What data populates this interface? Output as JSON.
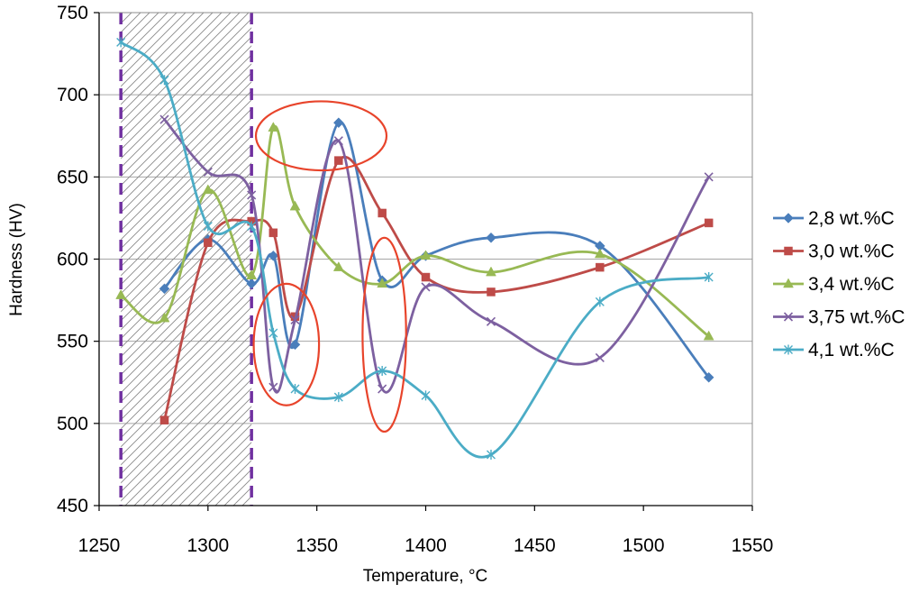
{
  "chart_data": {
    "type": "line",
    "xlabel": "Temperature, °C",
    "ylabel": "Hardness (HV)",
    "xlim": [
      1250,
      1550
    ],
    "ylim": [
      450,
      750
    ],
    "xticks": [
      1250,
      1300,
      1350,
      1400,
      1450,
      1500,
      1550
    ],
    "yticks": [
      450,
      500,
      550,
      600,
      650,
      700,
      750
    ],
    "grid": "horizontal",
    "legend_position": "right",
    "shaded_region": {
      "x_from": 1260,
      "x_to": 1320,
      "pattern": "diagonal hatch",
      "boundary_color": "#7030A0"
    },
    "highlight_ellipses": [
      {
        "cx": 1352,
        "cy": 675,
        "rx": 30,
        "ry": 21
      },
      {
        "cx": 1336,
        "cy": 548,
        "rx": 15,
        "ry": 37
      },
      {
        "cx": 1381,
        "cy": 554,
        "rx": 10,
        "ry": 59
      }
    ],
    "series": [
      {
        "name": "2,8 wt.%C",
        "color": "#4A7EBB",
        "marker": "diamond",
        "x": [
          1280,
          1300,
          1320,
          1330,
          1340,
          1360,
          1380,
          1400,
          1430,
          1480,
          1530
        ],
        "y": [
          582,
          612,
          585,
          602,
          548,
          683,
          587,
          602,
          613,
          608,
          528
        ]
      },
      {
        "name": "3,0 wt.%C",
        "color": "#BE4B48",
        "marker": "square",
        "x": [
          1280,
          1300,
          1320,
          1330,
          1340,
          1360,
          1380,
          1400,
          1430,
          1480,
          1530
        ],
        "y": [
          502,
          610,
          623,
          616,
          565,
          660,
          628,
          589,
          580,
          595,
          622
        ]
      },
      {
        "name": "3,4  wt.%C",
        "color": "#98B954",
        "marker": "triangle",
        "x": [
          1260,
          1280,
          1300,
          1320,
          1330,
          1340,
          1360,
          1380,
          1400,
          1430,
          1480,
          1530
        ],
        "y": [
          578,
          564,
          642,
          590,
          680,
          632,
          595,
          585,
          602,
          592,
          603,
          553
        ]
      },
      {
        "name": "3,75 wt.%C",
        "color": "#7D60A0",
        "marker": "x",
        "x": [
          1280,
          1300,
          1320,
          1330,
          1340,
          1360,
          1380,
          1400,
          1430,
          1480,
          1530
        ],
        "y": [
          685,
          653,
          639,
          522,
          563,
          672,
          521,
          583,
          562,
          540,
          650
        ]
      },
      {
        "name": "4,1  wt.%C",
        "color": "#4BACC6",
        "marker": "asterisk",
        "x": [
          1260,
          1280,
          1300,
          1320,
          1330,
          1340,
          1360,
          1380,
          1400,
          1430,
          1480,
          1530
        ],
        "y": [
          732,
          709,
          620,
          620,
          555,
          521,
          516,
          532,
          517,
          481,
          574,
          589
        ]
      }
    ]
  }
}
